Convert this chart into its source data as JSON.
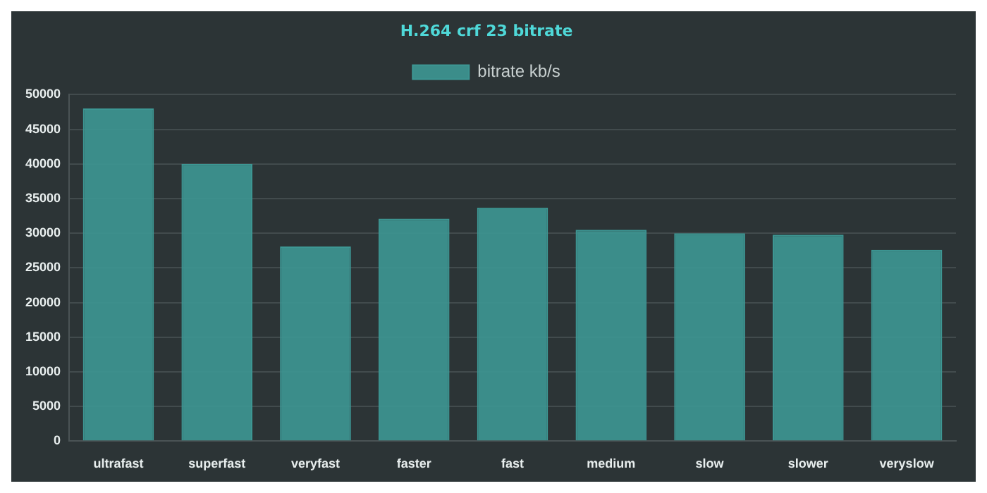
{
  "chart_data": {
    "type": "bar",
    "title": "H.264 crf 23 bitrate",
    "categories": [
      "ultrafast",
      "superfast",
      "veryfast",
      "faster",
      "fast",
      "medium",
      "slow",
      "slower",
      "veryslow"
    ],
    "series": [
      {
        "name": "bitrate kb/s",
        "color": "#3d9794",
        "values": [
          48000,
          40000,
          28100,
          32100,
          33700,
          30500,
          30000,
          29800,
          27600
        ]
      }
    ],
    "ylim": [
      0,
      50000
    ],
    "yticks": [
      0,
      5000,
      10000,
      15000,
      20000,
      25000,
      30000,
      35000,
      40000,
      45000,
      50000
    ],
    "grid": "y",
    "legend": "top"
  }
}
